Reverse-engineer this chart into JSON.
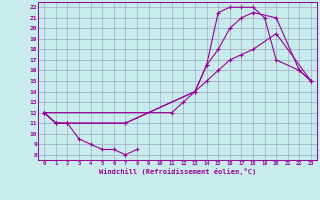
{
  "bg_color": "#c8ecec",
  "line_color": "#990099",
  "grid_color": "#9999bb",
  "xlabel": "Windchill (Refroidissement éolien,°C)",
  "xlim": [
    -0.5,
    23.5
  ],
  "ylim": [
    7.5,
    22.5
  ],
  "xticks": [
    0,
    1,
    2,
    3,
    4,
    5,
    6,
    7,
    8,
    9,
    10,
    11,
    12,
    13,
    14,
    15,
    16,
    17,
    18,
    19,
    20,
    21,
    22,
    23
  ],
  "yticks": [
    8,
    9,
    10,
    11,
    12,
    13,
    14,
    15,
    16,
    17,
    18,
    19,
    20,
    21,
    22
  ],
  "curves": [
    {
      "x": [
        0,
        1,
        2,
        3,
        4,
        5,
        6,
        7,
        8
      ],
      "y": [
        12,
        11,
        11,
        9.5,
        9,
        8.5,
        8.5,
        8,
        8.5
      ]
    },
    {
      "x": [
        0,
        1,
        2,
        7,
        13,
        14,
        15,
        16,
        17,
        18,
        19,
        20,
        22,
        23
      ],
      "y": [
        12,
        11,
        11,
        11,
        14,
        16.5,
        21.5,
        22,
        22,
        22,
        21,
        17,
        16,
        15
      ]
    },
    {
      "x": [
        0,
        11,
        12,
        13,
        14,
        15,
        16,
        17,
        18,
        20,
        23
      ],
      "y": [
        12,
        12,
        13,
        14,
        15,
        16,
        17,
        17.5,
        18,
        19.5,
        15
      ]
    },
    {
      "x": [
        0,
        1,
        2,
        7,
        13,
        14,
        15,
        16,
        17,
        18,
        20,
        22,
        23
      ],
      "y": [
        12,
        11,
        11,
        11,
        14,
        16.5,
        18,
        20,
        21,
        21.5,
        21,
        16,
        15
      ]
    }
  ]
}
